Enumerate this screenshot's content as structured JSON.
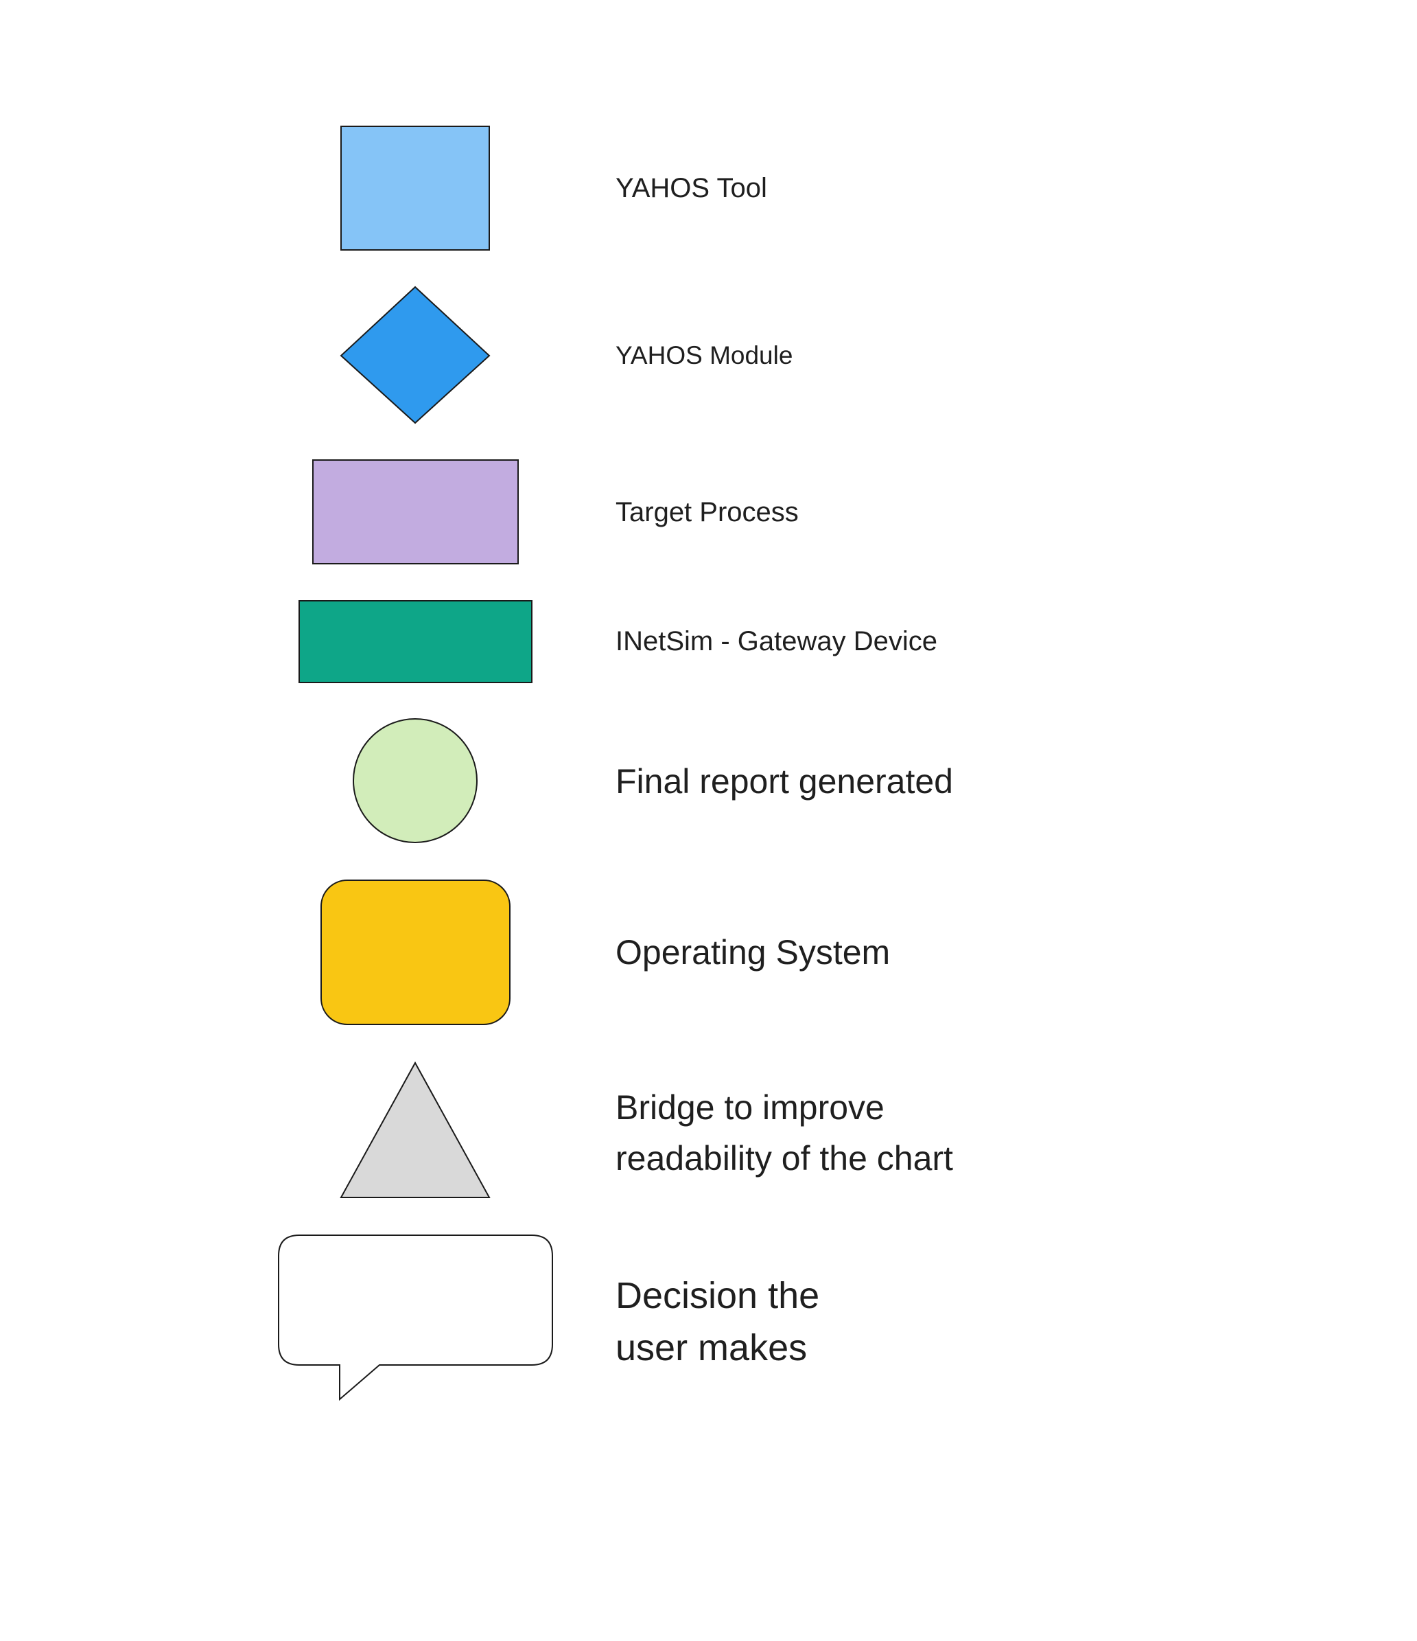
{
  "legend": {
    "items": [
      {
        "id": "yahos-tool",
        "shape": "rectangle",
        "fill": "#85C4F7",
        "label_lines": [
          "YAHOS Tool"
        ]
      },
      {
        "id": "yahos-module",
        "shape": "diamond",
        "fill": "#2F9AEE",
        "label_lines": [
          "YAHOS Module"
        ]
      },
      {
        "id": "target-process",
        "shape": "rectangle",
        "fill": "#C2ACE0",
        "label_lines": [
          "Target Process"
        ]
      },
      {
        "id": "inetsim-gateway",
        "shape": "rectangle",
        "fill": "#0EA688",
        "label_lines": [
          "INetSim - Gateway Device"
        ]
      },
      {
        "id": "final-report",
        "shape": "circle",
        "fill": "#D2EDBA",
        "label_lines": [
          "Final report generated"
        ]
      },
      {
        "id": "operating-system",
        "shape": "rounded-rectangle",
        "fill": "#F9C613",
        "label_lines": [
          "Operating System"
        ]
      },
      {
        "id": "bridge",
        "shape": "triangle",
        "fill": "#D9D9D9",
        "label_lines": [
          "Bridge to improve",
          "readability of the chart"
        ]
      },
      {
        "id": "user-decision",
        "shape": "speech-bubble",
        "fill": "#FFFFFF",
        "label_lines": [
          "Decision the",
          "user makes"
        ]
      }
    ]
  }
}
